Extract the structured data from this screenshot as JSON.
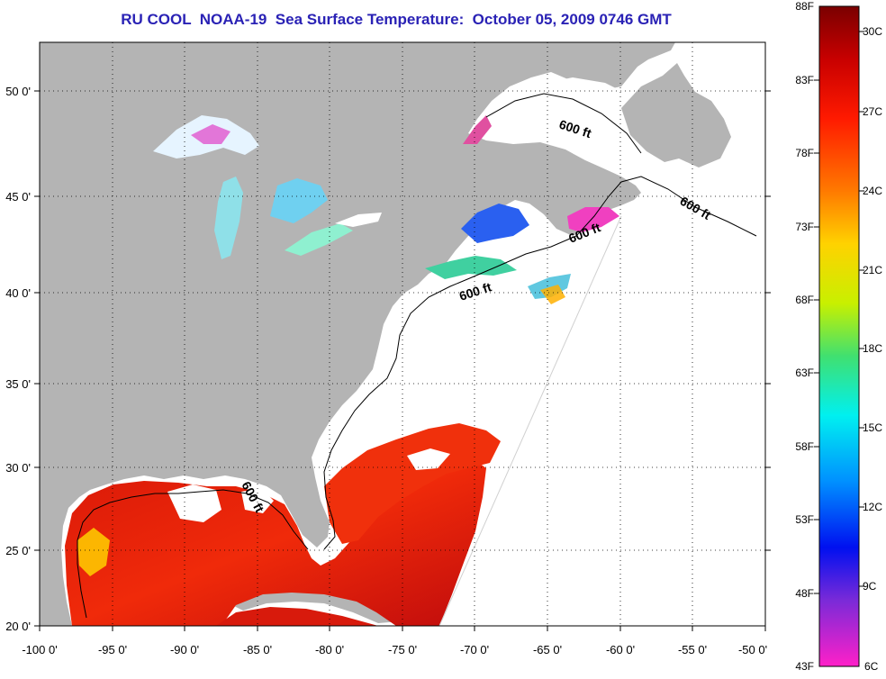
{
  "title": "RU COOL  NOAA-19  Sea Surface Temperature:  October 05, 2009 0746 GMT",
  "map": {
    "lon_range": [
      -100,
      -50
    ],
    "lat_range": [
      20,
      52.5
    ],
    "lon_ticks": [
      "-100 0'",
      "-95 0'",
      "-90 0'",
      "-85 0'",
      "-80 0'",
      "-75 0'",
      "-70 0'",
      "-65 0'",
      "-60 0'",
      "-55 0'",
      "-50 0'"
    ],
    "lat_ticks": [
      "20 0'",
      "25 0'",
      "30 0'",
      "35 0'",
      "40 0'",
      "45 0'",
      "50 0'"
    ],
    "isobath_labels": [
      "600 ft",
      "600 ft",
      "600 ft",
      "600 ft",
      "600 ft"
    ]
  },
  "colorbar": {
    "fahrenheit": [
      "88F",
      "83F",
      "78F",
      "73F",
      "68F",
      "63F",
      "58F",
      "53F",
      "48F",
      "43F"
    ],
    "celsius": [
      "30C",
      "27C",
      "24C",
      "21C",
      "18C",
      "15C",
      "12C",
      "9C",
      "6C"
    ]
  },
  "colors": {
    "land": "#b4b4b4",
    "no_data": "#ffffff",
    "title": "#2a22b5",
    "warm_water": "#e8140c"
  }
}
